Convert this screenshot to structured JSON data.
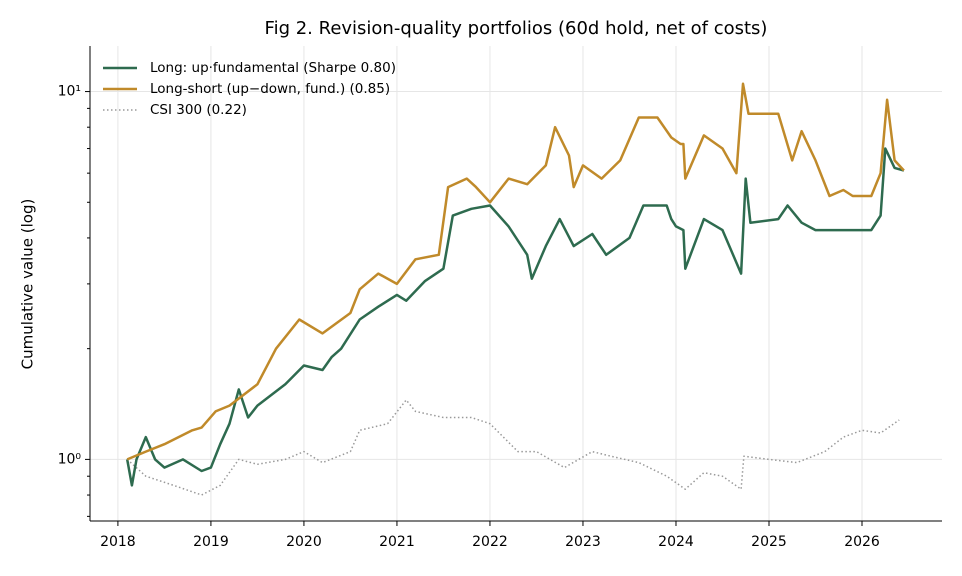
{
  "chart_data": {
    "type": "line",
    "title": "Fig 2. Revision-quality portfolios (60d hold, net of costs)",
    "ylabel": "Cumulative value (log)",
    "log_y": true,
    "grid": true,
    "legend": "upper left",
    "xlim": [
      2017.7,
      2026.86
    ],
    "xticks": [
      2018,
      2019,
      2020,
      2021,
      2022,
      2023,
      2024,
      2025,
      2026
    ],
    "ylim": [
      0.68,
      13.3
    ],
    "yticks": [
      {
        "value": 1,
        "label": "10⁰"
      },
      {
        "value": 10,
        "label": "10¹"
      }
    ],
    "yticks_minor": [
      0.7,
      0.8,
      0.9,
      2,
      3,
      4,
      5,
      6,
      7,
      8,
      9
    ],
    "series": [
      {
        "name": "Long: up·fundamental (Sharpe 0.80)",
        "color": "#2e6b4f",
        "style": "solid",
        "x": [
          2018.1,
          2018.15,
          2018.2,
          2018.3,
          2018.4,
          2018.5,
          2018.7,
          2018.9,
          2019.0,
          2019.1,
          2019.2,
          2019.3,
          2019.4,
          2019.5,
          2019.8,
          2020.0,
          2020.2,
          2020.3,
          2020.4,
          2020.6,
          2020.8,
          2021.0,
          2021.1,
          2021.3,
          2021.5,
          2021.6,
          2021.8,
          2022.0,
          2022.2,
          2022.4,
          2022.45,
          2022.6,
          2022.75,
          2022.9,
          2023.1,
          2023.25,
          2023.5,
          2023.65,
          2023.9,
          2023.95,
          2024.0,
          2024.08,
          2024.1,
          2024.3,
          2024.5,
          2024.7,
          2024.75,
          2024.8,
          2025.1,
          2025.2,
          2025.35,
          2025.5,
          2026.1,
          2026.2,
          2026.25,
          2026.35,
          2026.45
        ],
        "values": [
          1.0,
          0.85,
          1.0,
          1.15,
          1.0,
          0.95,
          1.0,
          0.93,
          0.95,
          1.1,
          1.25,
          1.55,
          1.3,
          1.4,
          1.6,
          1.8,
          1.75,
          1.9,
          2.0,
          2.4,
          2.6,
          2.8,
          2.7,
          3.05,
          3.3,
          4.6,
          4.8,
          4.9,
          4.3,
          3.6,
          3.1,
          3.8,
          4.5,
          3.8,
          4.1,
          3.6,
          4.0,
          4.9,
          4.9,
          4.5,
          4.3,
          4.2,
          3.3,
          4.5,
          4.2,
          3.2,
          5.8,
          4.4,
          4.5,
          4.9,
          4.4,
          4.2,
          4.2,
          4.6,
          7.0,
          6.2,
          6.1
        ]
      },
      {
        "name": "Long-short (up−down, fund.) (0.85)",
        "color": "#c08a2a",
        "style": "solid",
        "x": [
          2018.1,
          2018.3,
          2018.5,
          2018.8,
          2018.9,
          2019.05,
          2019.2,
          2019.5,
          2019.7,
          2019.95,
          2020.2,
          2020.5,
          2020.6,
          2020.8,
          2021.0,
          2021.2,
          2021.45,
          2021.55,
          2021.75,
          2021.85,
          2022.0,
          2022.2,
          2022.4,
          2022.6,
          2022.7,
          2022.85,
          2022.9,
          2023.0,
          2023.2,
          2023.4,
          2023.6,
          2023.8,
          2023.95,
          2024.05,
          2024.08,
          2024.1,
          2024.3,
          2024.5,
          2024.65,
          2024.72,
          2024.78,
          2025.1,
          2025.25,
          2025.35,
          2025.5,
          2025.65,
          2025.8,
          2025.9,
          2026.1,
          2026.2,
          2026.27,
          2026.35,
          2026.45
        ],
        "values": [
          1.0,
          1.05,
          1.1,
          1.2,
          1.22,
          1.35,
          1.4,
          1.6,
          2.0,
          2.4,
          2.2,
          2.5,
          2.9,
          3.2,
          3.0,
          3.5,
          3.6,
          5.5,
          5.8,
          5.5,
          5.0,
          5.8,
          5.6,
          6.3,
          8.0,
          6.7,
          5.5,
          6.3,
          5.8,
          6.5,
          8.5,
          8.5,
          7.5,
          7.2,
          7.2,
          5.8,
          7.6,
          7.0,
          6.0,
          10.5,
          8.7,
          8.7,
          6.5,
          7.8,
          6.5,
          5.2,
          5.4,
          5.2,
          5.2,
          6.0,
          9.5,
          6.5,
          6.1
        ]
      },
      {
        "name": "CSI 300 (0.22)",
        "color": "#999999",
        "style": "dotted",
        "x": [
          2018.1,
          2018.3,
          2018.6,
          2018.9,
          2019.1,
          2019.3,
          2019.5,
          2019.8,
          2020.0,
          2020.2,
          2020.5,
          2020.6,
          2020.9,
          2021.1,
          2021.2,
          2021.5,
          2021.8,
          2022.0,
          2022.3,
          2022.5,
          2022.8,
          2023.1,
          2023.3,
          2023.6,
          2023.9,
          2024.1,
          2024.3,
          2024.5,
          2024.7,
          2024.73,
          2025.0,
          2025.3,
          2025.6,
          2025.8,
          2026.0,
          2026.2,
          2026.4
        ],
        "values": [
          1.0,
          0.9,
          0.85,
          0.8,
          0.85,
          1.0,
          0.97,
          1.0,
          1.05,
          0.98,
          1.05,
          1.2,
          1.25,
          1.45,
          1.35,
          1.3,
          1.3,
          1.25,
          1.05,
          1.05,
          0.95,
          1.05,
          1.02,
          0.98,
          0.9,
          0.83,
          0.92,
          0.9,
          0.83,
          1.02,
          1.0,
          0.98,
          1.05,
          1.15,
          1.2,
          1.18,
          1.28
        ]
      }
    ]
  }
}
